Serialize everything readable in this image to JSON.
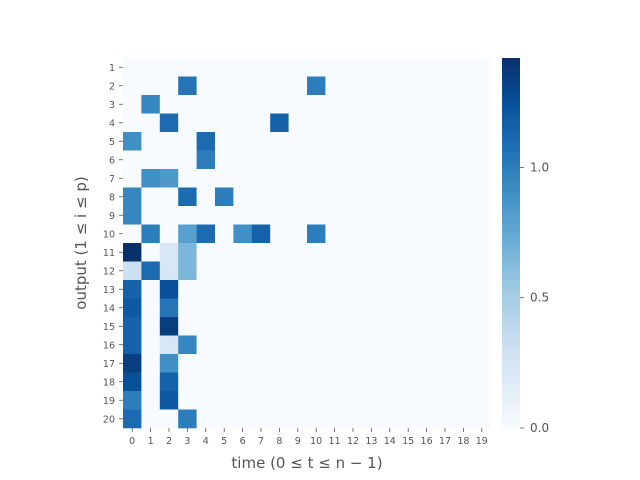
{
  "chart_data": {
    "type": "heatmap",
    "xlabel": "time (0 ≤ t ≤ n − 1)",
    "ylabel": "output (1 ≤ i ≤ p)",
    "x_ticks": [
      "0",
      "1",
      "2",
      "3",
      "4",
      "5",
      "6",
      "7",
      "8",
      "9",
      "10",
      "11",
      "12",
      "13",
      "14",
      "15",
      "16",
      "17",
      "18",
      "19"
    ],
    "y_ticks": [
      "1",
      "2",
      "3",
      "4",
      "5",
      "6",
      "7",
      "8",
      "9",
      "10",
      "11",
      "12",
      "13",
      "14",
      "15",
      "16",
      "17",
      "18",
      "19",
      "20"
    ],
    "colorbar": {
      "min": 0,
      "max": 1.42,
      "ticks": [
        "0.0",
        "0.5",
        "1.0"
      ],
      "tick_values": [
        0,
        0.5,
        1.0
      ],
      "colormap": "Blues"
    },
    "cells": [
      [
        0,
        0,
        0,
        0,
        0,
        0,
        0,
        0,
        0,
        0,
        0,
        0,
        0,
        0,
        0,
        0,
        0,
        0,
        0,
        0
      ],
      [
        0,
        0,
        0,
        1.05,
        0,
        0,
        0,
        0,
        0,
        0,
        1.0,
        0,
        0,
        0,
        0,
        0,
        0,
        0,
        0,
        0
      ],
      [
        0,
        0.95,
        0,
        0,
        0,
        0,
        0,
        0,
        0,
        0,
        0,
        0,
        0,
        0,
        0,
        0,
        0,
        0,
        0,
        0
      ],
      [
        0,
        0,
        1.1,
        0,
        0,
        0,
        0,
        0,
        1.15,
        0,
        0,
        0,
        0,
        0,
        0,
        0,
        0,
        0,
        0,
        0
      ],
      [
        0.9,
        0,
        0,
        0,
        1.1,
        0,
        0,
        0,
        0,
        0,
        0,
        0,
        0,
        0,
        0,
        0,
        0,
        0,
        0,
        0
      ],
      [
        0,
        0,
        0,
        0,
        1.0,
        0,
        0,
        0,
        0,
        0,
        0,
        0,
        0,
        0,
        0,
        0,
        0,
        0,
        0,
        0
      ],
      [
        0,
        0.9,
        0.85,
        0,
        0,
        0,
        0,
        0,
        0,
        0,
        0,
        0,
        0,
        0,
        0,
        0,
        0,
        0,
        0,
        0
      ],
      [
        0.95,
        0,
        0,
        1.1,
        0,
        1.0,
        0,
        0,
        0,
        0,
        0,
        0,
        0,
        0,
        0,
        0,
        0,
        0,
        0,
        0
      ],
      [
        0.95,
        0,
        0,
        0,
        0,
        0,
        0,
        0,
        0,
        0,
        0,
        0,
        0,
        0,
        0,
        0,
        0,
        0,
        0,
        0
      ],
      [
        0,
        1.0,
        0,
        0.8,
        1.1,
        0,
        0.9,
        1.15,
        0,
        0,
        1.0,
        0,
        0,
        0,
        0,
        0,
        0,
        0,
        0,
        0
      ],
      [
        1.42,
        0,
        0.22,
        0.65,
        0,
        0,
        0,
        0,
        0,
        0,
        0,
        0,
        0,
        0,
        0,
        0,
        0,
        0,
        0,
        0
      ],
      [
        0.3,
        1.1,
        0.22,
        0.65,
        0,
        0,
        0,
        0,
        0,
        0,
        0,
        0,
        0,
        0,
        0,
        0,
        0,
        0,
        0,
        0
      ],
      [
        1.15,
        0,
        1.25,
        0,
        0,
        0,
        0,
        0,
        0,
        0,
        0,
        0,
        0,
        0,
        0,
        0,
        0,
        0,
        0,
        0
      ],
      [
        1.2,
        0,
        1.05,
        0,
        0,
        0,
        0,
        0,
        0,
        0,
        0,
        0,
        0,
        0,
        0,
        0,
        0,
        0,
        0,
        0
      ],
      [
        1.15,
        0,
        1.35,
        0,
        0,
        0,
        0,
        0,
        0,
        0,
        0,
        0,
        0,
        0,
        0,
        0,
        0,
        0,
        0,
        0
      ],
      [
        1.15,
        0,
        0.22,
        0.95,
        0,
        0,
        0,
        0,
        0,
        0,
        0,
        0,
        0,
        0,
        0,
        0,
        0,
        0,
        0,
        0
      ],
      [
        1.35,
        0,
        0.9,
        0,
        0,
        0,
        0,
        0,
        0,
        0,
        0,
        0,
        0,
        0,
        0,
        0,
        0,
        0,
        0,
        0
      ],
      [
        1.25,
        0,
        1.15,
        0,
        0,
        0,
        0,
        0,
        0,
        0,
        0,
        0,
        0,
        0,
        0,
        0,
        0,
        0,
        0,
        0
      ],
      [
        1.0,
        0,
        1.2,
        0,
        0,
        0,
        0,
        0,
        0,
        0,
        0,
        0,
        0,
        0,
        0,
        0,
        0,
        0,
        0,
        0
      ],
      [
        1.1,
        0,
        0,
        1.0,
        0,
        0,
        0,
        0,
        0,
        0,
        0,
        0,
        0,
        0,
        0,
        0,
        0,
        0,
        0,
        0
      ]
    ]
  }
}
